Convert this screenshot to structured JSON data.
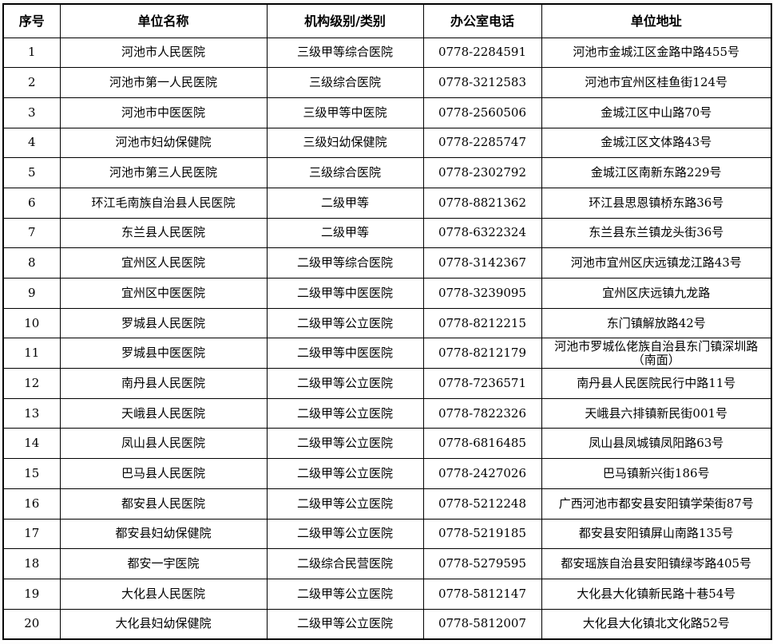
{
  "table": {
    "headers": [
      "序号",
      "单位名称",
      "机构级别/类别",
      "办公室电话",
      "单位地址"
    ],
    "rows": [
      [
        "1",
        "河池市人民医院",
        "三级甲等综合医院",
        "0778-2284591",
        "河池市金城江区金路中路455号"
      ],
      [
        "2",
        "河池市第一人民医院",
        "三级综合医院",
        "0778-3212583",
        "河池市宜州区桂鱼街124号"
      ],
      [
        "3",
        "河池市中医医院",
        "三级甲等中医院",
        "0778-2560506",
        "金城江区中山路70号"
      ],
      [
        "4",
        "河池市妇幼保健院",
        "三级妇幼保健院",
        "0778-2285747",
        "金城江区文体路43号"
      ],
      [
        "5",
        "河池市第三人民医院",
        "三级综合医院",
        "0778-2302792",
        "金城江区南新东路229号"
      ],
      [
        "6",
        "环江毛南族自治县人民医院",
        "二级甲等",
        "0778-8821362",
        "环江县思恩镇桥东路36号"
      ],
      [
        "7",
        "东兰县人民医院",
        "二级甲等",
        "0778-6322324",
        "东兰县东兰镇龙头街36号"
      ],
      [
        "8",
        "宜州区人民医院",
        "二级甲等综合医院",
        "0778-3142367",
        "河池市宜州区庆远镇龙江路43号"
      ],
      [
        "9",
        "宜州区中医医院",
        "二级甲等中医医院",
        "0778-3239095",
        "宜州区庆远镇九龙路"
      ],
      [
        "10",
        "罗城县人民医院",
        "二级甲等公立医院",
        "0778-8212215",
        "东门镇解放路42号"
      ],
      [
        "11",
        "罗城县中医医院",
        "二级甲等中医医院",
        "0778-8212179",
        "河池市罗城仫佬族自治县东门镇深圳路（南面）"
      ],
      [
        "12",
        "南丹县人民医院",
        "二级甲等公立医院",
        "0778-7236571",
        "南丹县人民医院民行中路11号"
      ],
      [
        "13",
        "天峨县人民医院",
        "二级甲等公立医院",
        "0778-7822326",
        "天峨县六排镇新民街001号"
      ],
      [
        "14",
        "凤山县人民医院",
        "二级甲等公立医院",
        "0778-6816485",
        "凤山县凤城镇凤阳路63号"
      ],
      [
        "15",
        "巴马县人民医院",
        "二级甲等公立医院",
        "0778-2427026",
        "巴马镇新兴街186号"
      ],
      [
        "16",
        "都安县人民医院",
        "二级甲等公立医院",
        "0778-5212248",
        "广西河池市都安县安阳镇学荣街87号"
      ],
      [
        "17",
        "都安县妇幼保健院",
        "二级甲等公立医院",
        "0778-5219185",
        "都安县安阳镇屏山南路135号"
      ],
      [
        "18",
        "都安一宇医院",
        "二级综合民营医院",
        "0778-5279595",
        "都安瑶族自治县安阳镇绿岑路405号"
      ],
      [
        "19",
        "大化县人民医院",
        "二级甲等公立医院",
        "0778-5812147",
        "大化县大化镇新民路十巷54号"
      ],
      [
        "20",
        "大化县妇幼保健院",
        "二级甲等公立医院",
        "0778-5812007",
        "大化县大化镇北文化路52号"
      ]
    ],
    "cell_names": [
      "cell-serial-number",
      "cell-unit-name",
      "cell-level-category",
      "cell-office-phone",
      "cell-unit-address"
    ]
  },
  "colors": {
    "border": "#000000",
    "text": "#000000",
    "background": "#ffffff"
  }
}
